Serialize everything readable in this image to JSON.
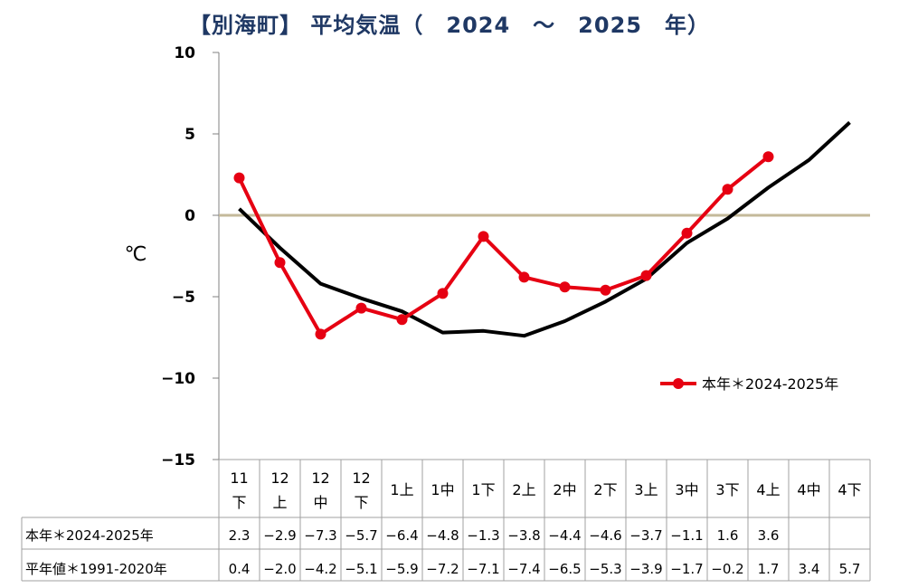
{
  "title": "【別海町】 平均気温（　2024　～　2025　年）",
  "chart_data": {
    "type": "line",
    "title": "【別海町】 平均気温（　2024　～　2025　年）",
    "ylabel": "℃",
    "ylim": [
      -15,
      10
    ],
    "yticks": [
      "10",
      "5",
      "0",
      "−5",
      "−10",
      "−15"
    ],
    "grid": false,
    "legend_position": "right",
    "categories": [
      [
        "11",
        "下"
      ],
      [
        "12",
        "上"
      ],
      [
        "12",
        "中"
      ],
      [
        "12",
        "下"
      ],
      [
        "1上"
      ],
      [
        "1中"
      ],
      [
        "1下"
      ],
      [
        "2上"
      ],
      [
        "2中"
      ],
      [
        "2下"
      ],
      [
        "3上"
      ],
      [
        "3中"
      ],
      [
        "3下"
      ],
      [
        "4上"
      ],
      [
        "4中"
      ],
      [
        "4下"
      ]
    ],
    "series": [
      {
        "name": "本年＊2024-2025年",
        "color": "#e60012",
        "values": [
          2.3,
          -2.9,
          -7.3,
          -5.7,
          -6.4,
          -4.8,
          -1.3,
          -3.8,
          -4.4,
          -4.6,
          -3.7,
          -1.1,
          1.6,
          3.6,
          null,
          null
        ],
        "labels": [
          "2.3",
          "−2.9",
          "−7.3",
          "−5.7",
          "−6.4",
          "−4.8",
          "−1.3",
          "−3.8",
          "−4.4",
          "−4.6",
          "−3.7",
          "−1.1",
          "1.6",
          "3.6",
          "",
          ""
        ]
      },
      {
        "name": "平年値＊1991-2020年",
        "color": "#000000",
        "values": [
          0.4,
          -2.0,
          -4.2,
          -5.1,
          -5.9,
          -7.2,
          -7.1,
          -7.4,
          -6.5,
          -5.3,
          -3.9,
          -1.7,
          -0.2,
          1.7,
          3.4,
          5.7
        ],
        "labels": [
          "0.4",
          "−2.0",
          "−4.2",
          "−5.1",
          "−5.9",
          "−7.2",
          "−7.1",
          "−7.4",
          "−6.5",
          "−5.3",
          "−3.9",
          "−1.7",
          "−0.2",
          "1.7",
          "3.4",
          "5.7"
        ]
      }
    ],
    "zero_line_color": "#c4b99a"
  }
}
